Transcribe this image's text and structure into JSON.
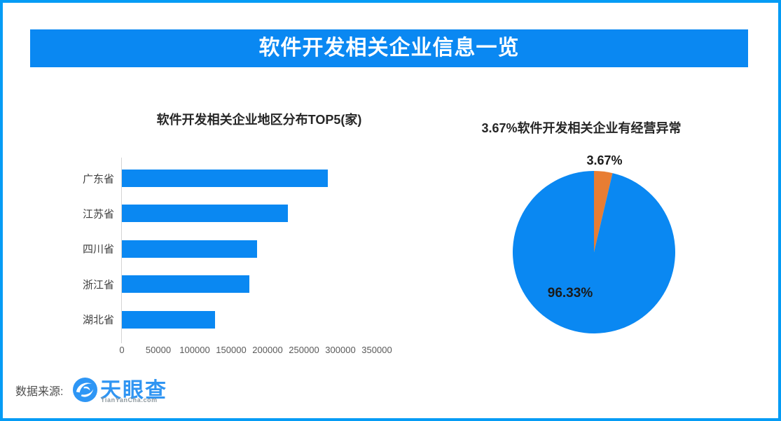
{
  "page": {
    "title": "软件开发相关企业信息一览",
    "source_label": "数据来源:",
    "logo": {
      "name": "天眼查",
      "domain": "TianYanCha.com"
    }
  },
  "colors": {
    "primary_blue": "#0a88f2",
    "border_blue": "#059cf5",
    "orange": "#e87d33",
    "title_text": "#262626",
    "axis_text": "#595959",
    "category_text": "#404040"
  },
  "chart_data": [
    {
      "type": "bar",
      "orientation": "horizontal",
      "title": "软件开发相关企业地区分布TOP5(家)",
      "categories": [
        "广东省",
        "江苏省",
        "四川省",
        "浙江省",
        "湖北省"
      ],
      "values": [
        283000,
        228000,
        186000,
        175000,
        128000
      ],
      "xlim": [
        0,
        350000
      ],
      "xticks": [
        0,
        50000,
        100000,
        150000,
        200000,
        250000,
        300000,
        350000
      ],
      "bar_color": "#0a88f2",
      "grid": false,
      "legend": false
    },
    {
      "type": "pie",
      "title": "3.67%软件开发相关企业有经营异常",
      "start_angle_deg": 0,
      "direction": "clockwise",
      "slices": [
        {
          "label": "3.67%",
          "value": 3.67,
          "color": "#e87d33"
        },
        {
          "label": "96.33%",
          "value": 96.33,
          "color": "#0a88f2"
        }
      ],
      "legend": false
    }
  ]
}
